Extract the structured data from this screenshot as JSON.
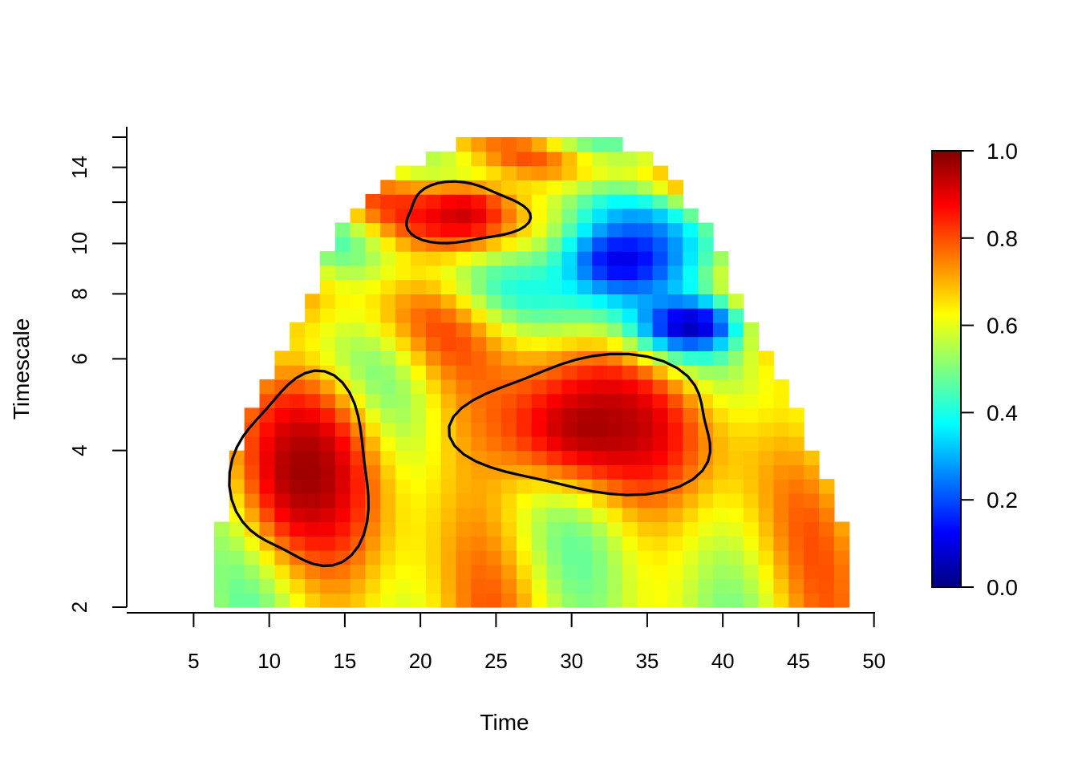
{
  "chart_data": {
    "type": "heatmap",
    "title": "",
    "xlabel": "Time",
    "ylabel": "Timescale",
    "xlim": [
      0.5,
      50
    ],
    "ylim": [
      2,
      16
    ],
    "y_scale": "log",
    "x_ticks": [
      5,
      10,
      15,
      20,
      25,
      30,
      35,
      40,
      45,
      50
    ],
    "y_ticks_labeled": [
      2,
      4,
      6,
      8,
      10,
      14
    ],
    "y_ticks_minor": [
      12,
      16
    ],
    "cell_width": 1,
    "colorbar": {
      "range": [
        0,
        1
      ],
      "ticks": [
        "0.0",
        "0.2",
        "0.4",
        "0.6",
        "0.8",
        "1.0"
      ],
      "palette": "jet",
      "stops": [
        "#00007F",
        "#0000FF",
        "#007FFF",
        "#00FFFF",
        "#7FFF7F",
        "#FFFF00",
        "#FF7F00",
        "#FF0000",
        "#7F0000"
      ]
    },
    "coverage_by_row": [
      {
        "timescale": 2.0,
        "x_start": 4,
        "x_end": 47
      },
      {
        "timescale": 3.0,
        "x_start": 5,
        "x_end": 46
      },
      {
        "timescale": 4.0,
        "x_start": 6,
        "x_end": 44
      },
      {
        "timescale": 5.5,
        "x_start": 8,
        "x_end": 42
      },
      {
        "timescale": 8.0,
        "x_start": 11,
        "x_end": 39
      },
      {
        "timescale": 11.0,
        "x_start": 13,
        "x_end": 37
      },
      {
        "timescale": 14.0,
        "x_start": 17,
        "x_end": 34
      },
      {
        "timescale": 16.0,
        "x_start": 21,
        "x_end": 31
      }
    ],
    "regions": [
      {
        "name": "high-left",
        "x": [
          6,
          15
        ],
        "y": [
          2.4,
          5.5
        ],
        "value": 0.97
      },
      {
        "name": "high-center",
        "x": [
          21,
          38
        ],
        "y": [
          3.3,
          6.0
        ],
        "value": 0.96
      },
      {
        "name": "high-top",
        "x": [
          17,
          25
        ],
        "y": [
          10,
          13
        ],
        "value": 0.93
      },
      {
        "name": "low-topright",
        "x": [
          26,
          37
        ],
        "y": [
          7.5,
          11.5
        ],
        "value": 0.1
      },
      {
        "name": "low-mid",
        "x": [
          33,
          39
        ],
        "y": [
          6.5,
          7.5
        ],
        "value": 0.05
      }
    ]
  }
}
